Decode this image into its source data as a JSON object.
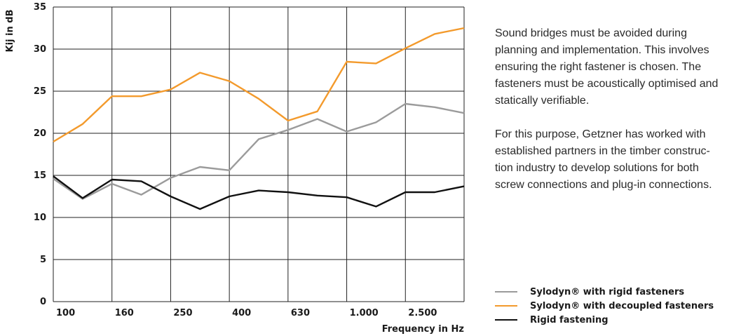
{
  "chart_data": {
    "type": "line",
    "xlabel": "Frequency in Hz",
    "ylabel": "Kij in dB",
    "ylim": [
      0,
      35
    ],
    "yticks": [
      "0",
      "5",
      "10",
      "15",
      "20",
      "25",
      "30",
      "35"
    ],
    "xtick_labels": [
      "100",
      "160",
      "250",
      "400",
      "630",
      "1.000",
      "2.500"
    ],
    "x": [
      "100",
      "125",
      "160",
      "200",
      "250",
      "315",
      "400",
      "500",
      "630",
      "800",
      "1000",
      "1250",
      "1600",
      "2000",
      "2500"
    ],
    "grid": true,
    "legend_position": "bottom-right",
    "series": [
      {
        "name": "Sylodyn® with rigid fasteners",
        "color": "#9b9b9b",
        "values": [
          14.6,
          12.2,
          14.0,
          12.7,
          14.7,
          16.0,
          15.6,
          19.3,
          20.4,
          21.7,
          20.2,
          21.3,
          23.5,
          23.1,
          22.4
        ]
      },
      {
        "name": "Sylodyn® with decoupled fasteners",
        "color": "#f39a2c",
        "values": [
          19.0,
          21.1,
          24.4,
          24.4,
          25.2,
          27.2,
          26.2,
          24.1,
          21.5,
          22.6,
          28.5,
          28.3,
          30.1,
          31.8,
          32.5
        ]
      },
      {
        "name": "Rigid fastening",
        "color": "#111111",
        "values": [
          14.9,
          12.3,
          14.5,
          14.3,
          12.5,
          11.0,
          12.5,
          13.2,
          13.0,
          12.6,
          12.4,
          11.3,
          13.0,
          13.0,
          13.7
        ]
      }
    ]
  },
  "text": {
    "paragraph1_lines": [
      "Sound bridges must be avoided during",
      "planning and implementation. This involves",
      "ensuring the right fastener is chosen. The",
      "fasteners must be acoustically optimised and",
      "statically verifiable."
    ],
    "paragraph2_lines": [
      "For this purpose, Getzner has worked with",
      "established partners in the timber construc-",
      "tion industry to develop solutions for both",
      "screw connections and plug-in connections."
    ]
  },
  "legend": {
    "items": [
      {
        "label": "Sylodyn® with rigid fasteners",
        "color": "#9b9b9b"
      },
      {
        "label": "Sylodyn® with decoupled fasteners",
        "color": "#f39a2c"
      },
      {
        "label": "Rigid fastening",
        "color": "#111111"
      }
    ]
  }
}
